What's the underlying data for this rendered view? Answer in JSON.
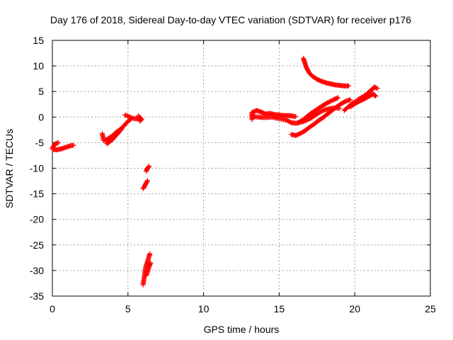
{
  "chart_data": {
    "type": "scatter",
    "title": "Day 176 of 2018, Sidereal Day-to-day VTEC variation (SDTVAR) for receiver p176",
    "xlabel": "GPS time / hours",
    "ylabel": "SDTVAR / TECUs",
    "xlim": [
      0,
      25
    ],
    "ylim": [
      -35,
      15
    ],
    "xticks": [
      0,
      5,
      10,
      15,
      20,
      25
    ],
    "yticks": [
      15,
      10,
      5,
      0,
      -5,
      -10,
      -15,
      -20,
      -25,
      -30,
      -35
    ],
    "grid": true,
    "legend": "none",
    "marker": "plus",
    "series_color": "#ff0000",
    "segments": [
      [
        [
          0.0,
          -6.0
        ],
        [
          0.2,
          -5.2
        ],
        [
          0.4,
          -5.0
        ]
      ],
      [
        [
          0.0,
          -6.3
        ],
        [
          0.3,
          -6.4
        ],
        [
          0.6,
          -6.2
        ],
        [
          0.9,
          -5.9
        ],
        [
          1.2,
          -5.6
        ],
        [
          1.4,
          -5.5
        ]
      ],
      [
        [
          3.3,
          -3.2
        ],
        [
          3.4,
          -4.6
        ],
        [
          3.6,
          -4.4
        ],
        [
          3.8,
          -4.0
        ],
        [
          4.0,
          -3.6
        ],
        [
          4.2,
          -3.0
        ],
        [
          4.4,
          -2.6
        ],
        [
          4.6,
          -2.1
        ],
        [
          4.8,
          -1.5
        ],
        [
          5.0,
          -0.8
        ],
        [
          5.2,
          -0.4
        ]
      ],
      [
        [
          3.6,
          -5.2
        ],
        [
          3.8,
          -4.8
        ],
        [
          4.0,
          -4.3
        ],
        [
          4.2,
          -3.6
        ],
        [
          4.4,
          -3.0
        ],
        [
          4.6,
          -2.2
        ]
      ],
      [
        [
          4.8,
          0.4
        ],
        [
          5.0,
          0.2
        ],
        [
          5.2,
          -0.1
        ],
        [
          5.4,
          -0.3
        ],
        [
          5.6,
          -0.3
        ],
        [
          5.8,
          -0.1
        ],
        [
          5.9,
          -0.4
        ],
        [
          5.8,
          -0.8
        ],
        [
          5.7,
          0.3
        ]
      ],
      [
        [
          6.2,
          -10.6
        ],
        [
          6.3,
          -10.0
        ],
        [
          6.4,
          -9.6
        ]
      ],
      [
        [
          6.0,
          -14.0
        ],
        [
          6.1,
          -13.5
        ],
        [
          6.2,
          -12.9
        ],
        [
          6.3,
          -12.4
        ]
      ],
      [
        [
          6.0,
          -32.8
        ],
        [
          6.05,
          -31.8
        ],
        [
          6.1,
          -30.8
        ],
        [
          6.15,
          -29.8
        ],
        [
          6.2,
          -29.0
        ],
        [
          6.3,
          -28.2
        ],
        [
          6.4,
          -27.2
        ],
        [
          6.45,
          -26.7
        ]
      ],
      [
        [
          6.2,
          -31.0
        ],
        [
          6.3,
          -30.2
        ],
        [
          6.4,
          -29.2
        ],
        [
          6.5,
          -28.5
        ]
      ],
      [
        [
          13.2,
          -0.5
        ],
        [
          13.2,
          0.9
        ],
        [
          13.5,
          1.3
        ],
        [
          13.8,
          1.0
        ],
        [
          14.1,
          0.6
        ],
        [
          14.4,
          0.7
        ],
        [
          14.7,
          0.5
        ],
        [
          15.0,
          0.4
        ],
        [
          15.3,
          0.3
        ],
        [
          15.6,
          0.3
        ],
        [
          15.9,
          0.2
        ],
        [
          16.1,
          0.1
        ]
      ],
      [
        [
          13.2,
          0.2
        ],
        [
          13.6,
          0.0
        ],
        [
          14.0,
          -0.1
        ],
        [
          14.5,
          0.0
        ],
        [
          15.0,
          -0.3
        ],
        [
          15.5,
          -0.6
        ],
        [
          15.8,
          -1.1
        ],
        [
          16.1,
          -1.2
        ],
        [
          16.6,
          -0.9
        ],
        [
          17.1,
          -0.2
        ],
        [
          17.6,
          0.8
        ],
        [
          18.0,
          1.4
        ],
        [
          18.4,
          1.7
        ],
        [
          18.8,
          1.8
        ],
        [
          19.0,
          1.7
        ]
      ],
      [
        [
          15.8,
          -3.4
        ],
        [
          16.1,
          -3.6
        ],
        [
          16.4,
          -3.2
        ],
        [
          16.7,
          -2.7
        ],
        [
          17.0,
          -2.0
        ],
        [
          17.3,
          -1.4
        ],
        [
          17.6,
          -0.7
        ],
        [
          17.9,
          -0.1
        ],
        [
          18.2,
          0.6
        ],
        [
          18.5,
          1.3
        ],
        [
          18.8,
          2.0
        ],
        [
          19.1,
          2.6
        ],
        [
          19.4,
          3.1
        ],
        [
          19.6,
          3.3
        ],
        [
          19.7,
          3.4
        ]
      ],
      [
        [
          16.2,
          -1.2
        ],
        [
          16.6,
          -0.5
        ],
        [
          17.0,
          0.5
        ],
        [
          17.4,
          1.3
        ],
        [
          17.8,
          2.1
        ],
        [
          18.2,
          2.8
        ],
        [
          18.6,
          3.4
        ],
        [
          18.9,
          3.8
        ]
      ],
      [
        [
          16.6,
          11.5
        ],
        [
          16.7,
          10.6
        ],
        [
          16.8,
          9.7
        ],
        [
          16.9,
          9.1
        ],
        [
          17.0,
          8.6
        ],
        [
          17.2,
          8.0
        ],
        [
          17.5,
          7.4
        ],
        [
          17.8,
          7.0
        ],
        [
          18.1,
          6.7
        ],
        [
          18.4,
          6.5
        ],
        [
          18.7,
          6.3
        ],
        [
          19.0,
          6.2
        ],
        [
          19.3,
          6.1
        ],
        [
          19.6,
          6.1
        ]
      ],
      [
        [
          19.3,
          1.3
        ],
        [
          19.5,
          1.8
        ],
        [
          19.7,
          2.3
        ],
        [
          19.9,
          2.8
        ],
        [
          20.1,
          3.1
        ],
        [
          20.3,
          3.2
        ]
      ],
      [
        [
          19.7,
          2.0
        ],
        [
          20.0,
          2.6
        ],
        [
          20.3,
          3.1
        ],
        [
          20.6,
          3.5
        ],
        [
          20.9,
          4.0
        ],
        [
          21.2,
          4.5
        ],
        [
          21.4,
          4.1
        ]
      ],
      [
        [
          20.2,
          3.4
        ],
        [
          20.5,
          3.9
        ],
        [
          20.8,
          4.5
        ],
        [
          21.0,
          5.1
        ],
        [
          21.2,
          5.5
        ],
        [
          21.3,
          5.9
        ],
        [
          21.5,
          5.6
        ]
      ]
    ]
  }
}
